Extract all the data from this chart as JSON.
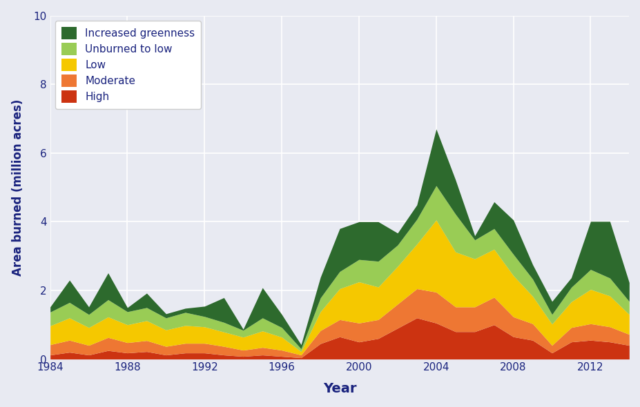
{
  "years": [
    1984,
    1985,
    1986,
    1987,
    1988,
    1989,
    1990,
    1991,
    1992,
    1993,
    1994,
    1995,
    1996,
    1997,
    1998,
    1999,
    2000,
    2001,
    2002,
    2003,
    2004,
    2005,
    2006,
    2007,
    2008,
    2009,
    2010,
    2011,
    2012,
    2013,
    2014
  ],
  "high": [
    0.12,
    0.2,
    0.12,
    0.25,
    0.18,
    0.22,
    0.12,
    0.18,
    0.18,
    0.12,
    0.08,
    0.12,
    0.08,
    0.04,
    0.45,
    0.65,
    0.5,
    0.6,
    0.9,
    1.2,
    1.05,
    0.8,
    0.8,
    1.0,
    0.65,
    0.55,
    0.18,
    0.5,
    0.55,
    0.5,
    0.4
  ],
  "moderate": [
    0.3,
    0.35,
    0.28,
    0.38,
    0.3,
    0.32,
    0.25,
    0.28,
    0.28,
    0.25,
    0.18,
    0.22,
    0.18,
    0.08,
    0.38,
    0.5,
    0.55,
    0.55,
    0.7,
    0.85,
    0.9,
    0.72,
    0.72,
    0.8,
    0.58,
    0.48,
    0.22,
    0.42,
    0.48,
    0.44,
    0.32
  ],
  "low": [
    0.55,
    0.65,
    0.52,
    0.6,
    0.52,
    0.58,
    0.48,
    0.52,
    0.48,
    0.42,
    0.38,
    0.48,
    0.38,
    0.1,
    0.55,
    0.9,
    1.2,
    0.95,
    1.1,
    1.3,
    2.1,
    1.6,
    1.4,
    1.4,
    1.2,
    0.8,
    0.62,
    0.75,
    1.0,
    0.9,
    0.58
  ],
  "unburned_to_low": [
    0.4,
    0.45,
    0.38,
    0.5,
    0.38,
    0.38,
    0.35,
    0.38,
    0.3,
    0.28,
    0.2,
    0.38,
    0.28,
    0.08,
    0.4,
    0.5,
    0.65,
    0.75,
    0.62,
    0.72,
    1.0,
    1.1,
    0.55,
    0.6,
    0.62,
    0.5,
    0.28,
    0.42,
    0.58,
    0.52,
    0.38
  ],
  "increased_greenness": [
    0.15,
    0.65,
    0.22,
    0.78,
    0.12,
    0.42,
    0.12,
    0.12,
    0.3,
    0.72,
    0.03,
    0.88,
    0.38,
    0.12,
    0.6,
    1.25,
    1.1,
    1.15,
    0.35,
    0.42,
    1.65,
    1.0,
    0.12,
    0.78,
    1.0,
    0.42,
    0.38,
    0.28,
    1.4,
    1.65,
    0.55
  ],
  "colors": {
    "high": "#cc3311",
    "moderate": "#ee7733",
    "low": "#f5c800",
    "unburned_to_low": "#99cc55",
    "increased_greenness": "#2d6a2d"
  },
  "legend_labels": {
    "increased_greenness": "Increased greenness",
    "unburned_to_low": "Unburned to low",
    "low": "Low",
    "moderate": "Moderate",
    "high": "High"
  },
  "ylabel": "Area burned (million acres)",
  "xlabel": "Year",
  "ylim": [
    0,
    10
  ],
  "yticks": [
    0,
    2,
    4,
    6,
    8,
    10
  ],
  "xticks": [
    1984,
    1988,
    1992,
    1996,
    2000,
    2004,
    2008,
    2012
  ],
  "bg_color": "#e8eaf2",
  "plot_bg_color": "#e8eaf2",
  "label_color": "#1a237e"
}
